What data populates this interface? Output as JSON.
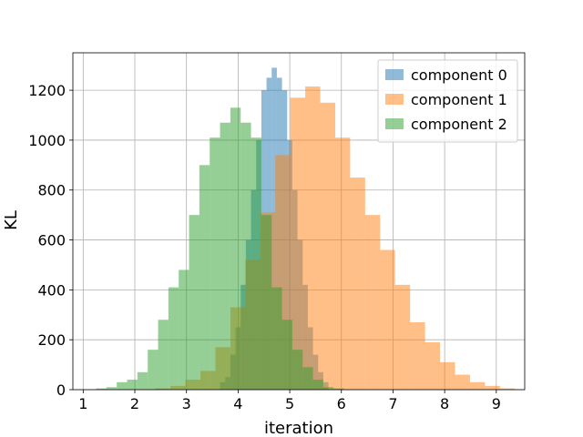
{
  "chart_data": {
    "type": "histogram",
    "title": "",
    "xlabel": "iteration",
    "ylabel": "KL",
    "xlim": [
      0.8,
      9.55
    ],
    "ylim": [
      0,
      1350
    ],
    "xticks": [
      1,
      2,
      3,
      4,
      5,
      6,
      7,
      8,
      9
    ],
    "yticks": [
      0,
      200,
      400,
      600,
      800,
      1000,
      1200
    ],
    "grid": true,
    "legend_position": "top-right",
    "series": [
      {
        "name": "component 0",
        "color": "#1f77b4",
        "alpha": 0.5,
        "bin_start": 3.65,
        "bin_width": 0.1,
        "counts": [
          30,
          50,
          140,
          250,
          420,
          600,
          800,
          1000,
          1200,
          1250,
          1290,
          1250,
          1200,
          1000,
          800,
          600,
          420,
          250,
          140,
          70,
          30
        ]
      },
      {
        "name": "component 1",
        "color": "#ff7f0e",
        "alpha": 0.5,
        "bin_start": 2.4,
        "bin_width": 0.29,
        "counts": [
          5,
          15,
          40,
          75,
          170,
          330,
          520,
          710,
          940,
          1170,
          1215,
          1150,
          1010,
          850,
          700,
          560,
          420,
          270,
          190,
          110,
          60,
          30,
          15,
          5
        ]
      },
      {
        "name": "component 2",
        "color": "#2ca02c",
        "alpha": 0.5,
        "bin_start": 1.25,
        "bin_width": 0.2,
        "counts": [
          5,
          10,
          30,
          40,
          70,
          160,
          280,
          410,
          480,
          700,
          900,
          1010,
          1070,
          1130,
          1070,
          1010,
          700,
          410,
          280,
          160,
          90,
          40,
          10,
          5
        ]
      }
    ]
  }
}
